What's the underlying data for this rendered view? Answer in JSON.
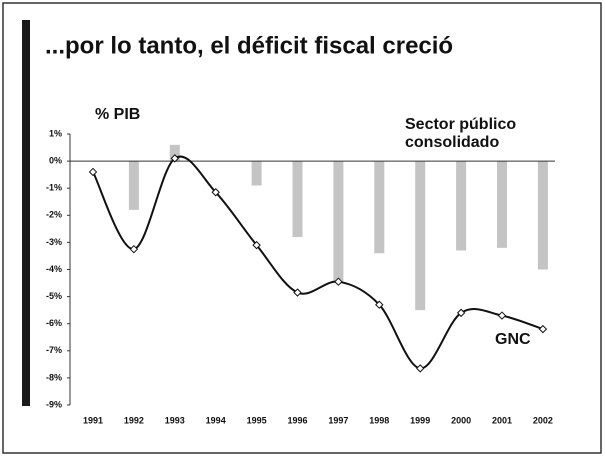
{
  "chart_data": {
    "type": "bar_line",
    "title": "...por lo tanto, el déficit fiscal creció",
    "ylabel": "% PIB",
    "categories": [
      "1991",
      "1992",
      "1993",
      "1994",
      "1995",
      "1996",
      "1997",
      "1998",
      "1999",
      "2000",
      "2001",
      "2002"
    ],
    "series": [
      {
        "name": "Sector público consolidado",
        "type": "bar",
        "color": "#c4c4c4",
        "values": [
          0,
          -1.8,
          0.6,
          0,
          -0.9,
          -2.8,
          -4.5,
          -3.4,
          -5.5,
          -3.3,
          -3.2,
          -4.0
        ]
      },
      {
        "name": "GNC",
        "type": "line",
        "color": "#111111",
        "values": [
          -0.4,
          -3.25,
          0.1,
          -1.15,
          -3.1,
          -4.85,
          -4.45,
          -5.3,
          -7.65,
          -5.6,
          -5.7,
          -6.2
        ]
      }
    ],
    "ylim": [
      -9,
      1
    ],
    "yticks": [
      {
        "value": 1,
        "label": "1%"
      },
      {
        "value": 0,
        "label": "0%"
      },
      {
        "value": -1,
        "label": "-1%"
      },
      {
        "value": -2,
        "label": "-2%"
      },
      {
        "value": -3,
        "label": "-3%"
      },
      {
        "value": -4,
        "label": "-4%"
      },
      {
        "value": -5,
        "label": "-5%"
      },
      {
        "value": -6,
        "label": "-6%"
      },
      {
        "value": -7,
        "label": "-7%"
      },
      {
        "value": -8,
        "label": "-8%"
      },
      {
        "value": -9,
        "label": "-9%"
      }
    ]
  }
}
